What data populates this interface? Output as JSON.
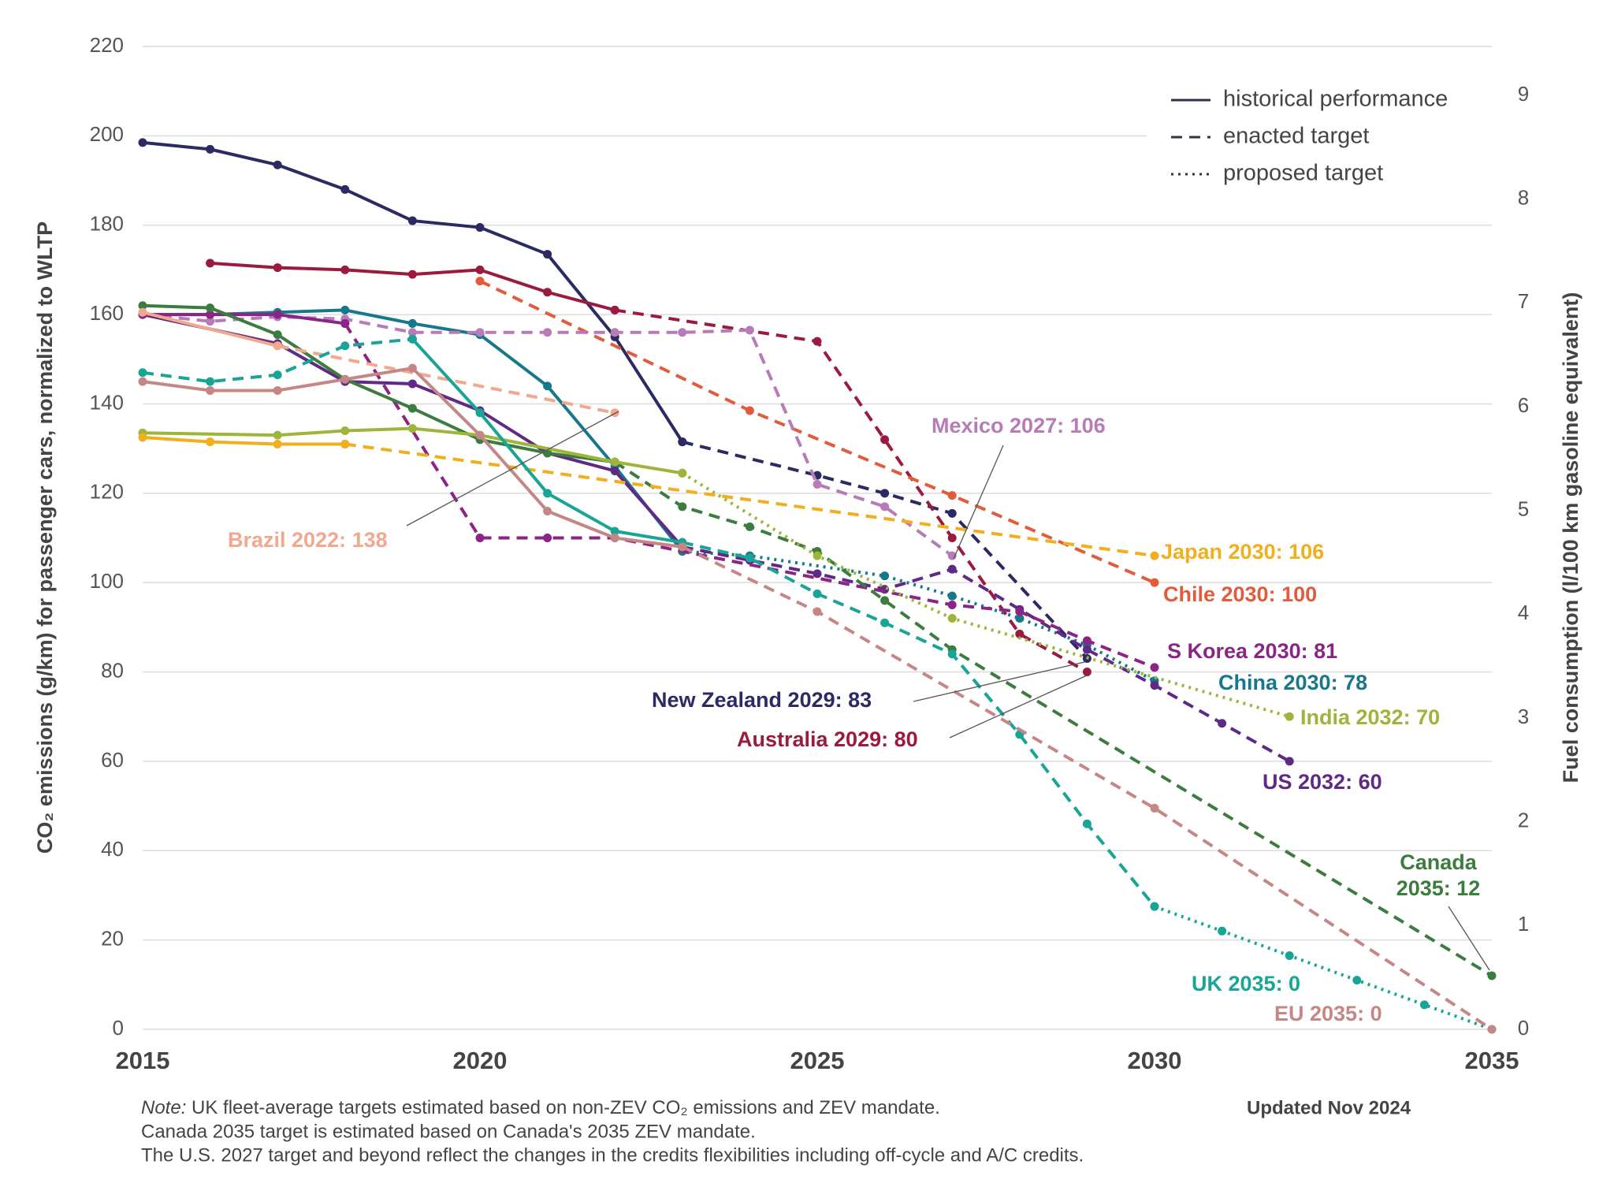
{
  "chart_data": {
    "type": "line",
    "y_label": "CO₂ emissions (g/km) for passenger cars, normalized to WLTP",
    "y2_label": "Fuel consumption (l/100 km gasoline equivalent)",
    "xlim": [
      2015,
      2035
    ],
    "xticks": [
      2015,
      2020,
      2025,
      2030,
      2035
    ],
    "ylim": [
      0,
      220
    ],
    "yticks": [
      0,
      20,
      40,
      60,
      80,
      100,
      120,
      140,
      160,
      180,
      200,
      220
    ],
    "y2lim": [
      0,
      9.47
    ],
    "y2ticks": [
      0,
      1,
      2,
      3,
      4,
      5,
      6,
      7,
      8,
      9
    ],
    "grid": true,
    "legend": [
      {
        "label": "historical performance",
        "style": "solid"
      },
      {
        "label": "enacted target",
        "style": "dashed"
      },
      {
        "label": "proposed target",
        "style": "dotted"
      }
    ],
    "series": [
      {
        "color": "#2b2a63",
        "segments": [
          {
            "style": "solid",
            "x": [
              2015,
              2016,
              2017,
              2018,
              2019,
              2020,
              2021,
              2022,
              2023
            ],
            "values": [
              198.5,
              197,
              193.5,
              188,
              181,
              179.5,
              173.5,
              155,
              131.5
            ]
          },
          {
            "style": "dashed",
            "x": [
              2023,
              2025,
              2026,
              2027,
              2029
            ],
            "values": [
              131.5,
              124,
              120,
              115.5,
              83
            ]
          }
        ]
      },
      {
        "color": "#9b1b3f",
        "segments": [
          {
            "style": "solid",
            "x": [
              2016,
              2017,
              2018,
              2019,
              2020,
              2021,
              2022
            ],
            "values": [
              171.5,
              170.5,
              170,
              169,
              170,
              165,
              161
            ]
          },
          {
            "style": "dashed",
            "x": [
              2022,
              2025,
              2026,
              2027,
              2028,
              2029
            ],
            "values": [
              161,
              154,
              132,
              110,
              88.5,
              80
            ]
          }
        ]
      },
      {
        "color": "#e25b3c",
        "segments": [
          {
            "style": "dashed",
            "x": [
              2020,
              2024,
              2027,
              2030
            ],
            "values": [
              167.5,
              138.5,
              119.5,
              100
            ]
          }
        ]
      },
      {
        "color": "#17788c",
        "segments": [
          {
            "style": "solid",
            "x": [
              2015,
              2016,
              2017,
              2018,
              2019,
              2020,
              2021,
              2022,
              2023
            ],
            "values": [
              160,
              160,
              160.5,
              161,
              158,
              155.5,
              144,
              126,
              107
            ]
          },
          {
            "style": "dotted",
            "x": [
              2023,
              2024,
              2026,
              2027,
              2028,
              2029,
              2030
            ],
            "values": [
              107,
              106,
              101.5,
              97,
              92,
              86,
              78
            ]
          }
        ]
      },
      {
        "color": "#b77bb8",
        "segments": [
          {
            "style": "dashed",
            "x": [
              2015,
              2016,
              2017,
              2018,
              2019,
              2020,
              2021,
              2022,
              2023,
              2024,
              2025,
              2026,
              2027
            ],
            "values": [
              160,
              158.5,
              159.5,
              159,
              156,
              156,
              156,
              156,
              156,
              156.5,
              122,
              117,
              106
            ]
          }
        ]
      },
      {
        "color": "#5e2a85",
        "segments": [
          {
            "style": "solid",
            "x": [
              2015,
              2017,
              2018,
              2019,
              2020,
              2021,
              2022,
              2023
            ],
            "values": [
              160,
              153.5,
              145,
              144.5,
              138.5,
              129,
              125,
              108
            ]
          },
          {
            "style": "dashed",
            "x": [
              2023,
              2024,
              2025,
              2026,
              2027,
              2028,
              2029,
              2030,
              2031,
              2032
            ],
            "values": [
              108,
              105,
              102,
              98.5,
              103,
              94,
              85,
              77,
              68.5,
              60
            ]
          }
        ]
      },
      {
        "color": "#8a2585",
        "segments": [
          {
            "style": "solid",
            "x": [
              2015,
              2016,
              2017,
              2018
            ],
            "values": [
              160,
              160,
              160,
              158
            ]
          },
          {
            "style": "dashed",
            "x": [
              2018,
              2020,
              2021,
              2022,
              2027,
              2028,
              2029,
              2030
            ],
            "values": [
              158,
              110,
              110,
              110,
              95,
              93.5,
              87,
              81
            ]
          }
        ]
      },
      {
        "color": "#3c7d3f",
        "segments": [
          {
            "style": "solid",
            "x": [
              2015,
              2016,
              2017,
              2018,
              2019,
              2020,
              2021,
              2022
            ],
            "values": [
              162,
              161.5,
              155.5,
              145.5,
              139,
              132,
              129,
              127
            ]
          },
          {
            "style": "dashed",
            "x": [
              2022,
              2023,
              2024,
              2025,
              2026,
              2027,
              2035
            ],
            "values": [
              127,
              117,
              112.5,
              107,
              96,
              85,
              12
            ]
          }
        ]
      },
      {
        "color": "#9cb53a",
        "segments": [
          {
            "style": "solid",
            "x": [
              2015,
              2017,
              2018,
              2019,
              2020,
              2022,
              2023
            ],
            "values": [
              133.5,
              133,
              134,
              134.5,
              133,
              127,
              124.5
            ]
          },
          {
            "style": "dotted",
            "x": [
              2023,
              2025,
              2027,
              2032
            ],
            "values": [
              124.5,
              106,
              92,
              70
            ]
          }
        ]
      },
      {
        "color": "#f1ae1d",
        "segments": [
          {
            "style": "solid",
            "x": [
              2015,
              2016,
              2017,
              2018
            ],
            "values": [
              132.5,
              131.5,
              131,
              131
            ]
          },
          {
            "style": "dashed",
            "x": [
              2018,
              2030
            ],
            "values": [
              131,
              106
            ]
          }
        ]
      },
      {
        "color": "#f1a88e",
        "segments": [
          {
            "style": "solid",
            "x": [
              2015,
              2017
            ],
            "values": [
              160.5,
              153
            ]
          },
          {
            "style": "dashed",
            "x": [
              2017,
              2022
            ],
            "values": [
              153,
              138
            ]
          }
        ]
      },
      {
        "color": "#18a596",
        "segments": [
          {
            "style": "dashed",
            "x": [
              2015,
              2016,
              2017,
              2018,
              2019
            ],
            "values": [
              147,
              145,
              146.5,
              153,
              154.5
            ]
          },
          {
            "style": "solid",
            "x": [
              2019,
              2020,
              2021,
              2022,
              2023
            ],
            "values": [
              154.5,
              138,
              120,
              111.5,
              109
            ]
          },
          {
            "style": "dashed",
            "x": [
              2023,
              2024,
              2025,
              2026,
              2027,
              2028,
              2029,
              2030
            ],
            "values": [
              109,
              105.5,
              97.5,
              91,
              84,
              66,
              46,
              27.5
            ]
          },
          {
            "style": "dotted",
            "x": [
              2030,
              2031,
              2032,
              2033,
              2034,
              2035
            ],
            "values": [
              27.5,
              22,
              16.5,
              11,
              5.5,
              0
            ]
          }
        ]
      },
      {
        "color": "#c58786",
        "segments": [
          {
            "style": "solid",
            "x": [
              2015,
              2016,
              2017,
              2018,
              2019,
              2020,
              2021,
              2022,
              2023
            ],
            "values": [
              145,
              143,
              143,
              145.5,
              148,
              133,
              116,
              110,
              108
            ]
          },
          {
            "style": "dashed",
            "x": [
              2023,
              2025,
              2030,
              2035
            ],
            "values": [
              108,
              93.5,
              49.5,
              0
            ]
          }
        ]
      }
    ],
    "annotations": [
      {
        "lines": [
          "Brazil 2022: 138"
        ],
        "color": "#f1a88e"
      },
      {
        "lines": [
          "Mexico 2027: 106"
        ],
        "color": "#b77bb8"
      },
      {
        "lines": [
          "Japan 2030: 106"
        ],
        "color": "#f1ae1d"
      },
      {
        "lines": [
          "Chile 2030: 100"
        ],
        "color": "#e25b3c"
      },
      {
        "lines": [
          "S Korea 2030: 81"
        ],
        "color": "#8a2585"
      },
      {
        "lines": [
          "China 2030: 78"
        ],
        "color": "#17788c"
      },
      {
        "lines": [
          "India 2032: 70"
        ],
        "color": "#9cb53a"
      },
      {
        "lines": [
          "US 2032: 60"
        ],
        "color": "#5e2a85"
      },
      {
        "lines": [
          "New Zealand 2029: 83"
        ],
        "color": "#2b2a63"
      },
      {
        "lines": [
          "Australia 2029: 80"
        ],
        "color": "#9b1b3f"
      },
      {
        "lines": [
          "Canada",
          "2035: 12"
        ],
        "color": "#3c7d3f"
      },
      {
        "lines": [
          "UK 2035: 0"
        ],
        "color": "#18a596"
      },
      {
        "lines": [
          "EU 2035: 0"
        ],
        "color": "#c58786"
      }
    ],
    "note_label": "Note:",
    "notes": [
      "UK fleet-average targets estimated based on non-ZEV CO₂ emissions and ZEV mandate.",
      "Canada 2035 target is estimated based on Canada's 2035 ZEV mandate.",
      "The U.S. 2027 target and beyond reflect the changes in the credits flexibilities including off-cycle and A/C credits."
    ],
    "updated": "Updated Nov 2024"
  }
}
